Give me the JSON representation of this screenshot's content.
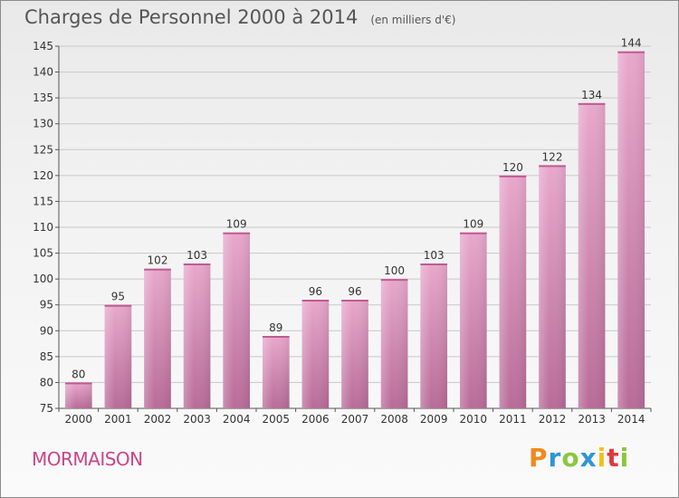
{
  "chart_data": {
    "type": "bar",
    "title": "Charges de Personnel 2000 à 2014",
    "subtitle": "(en milliers d'€)",
    "categories": [
      "2000",
      "2001",
      "2002",
      "2003",
      "2004",
      "2005",
      "2006",
      "2007",
      "2008",
      "2009",
      "2010",
      "2011",
      "2012",
      "2013",
      "2014"
    ],
    "values": [
      80,
      95,
      102,
      103,
      109,
      89,
      96,
      96,
      100,
      103,
      109,
      120,
      122,
      134,
      144
    ],
    "ylim": [
      75,
      145
    ],
    "yticks": [
      75,
      80,
      85,
      90,
      95,
      100,
      105,
      110,
      115,
      120,
      125,
      130,
      135,
      140,
      145
    ],
    "grid": true,
    "bar_color": "#c870a0"
  },
  "commune": "MORMAISON",
  "logo": {
    "letters": [
      "P",
      "r",
      "o",
      "x",
      "i",
      "t",
      "i"
    ],
    "colors": [
      "#f08a1c",
      "#2f95d6",
      "#8cc63f",
      "#2f95d6",
      "#f0c21c",
      "#e0393e",
      "#8cc63f"
    ]
  }
}
